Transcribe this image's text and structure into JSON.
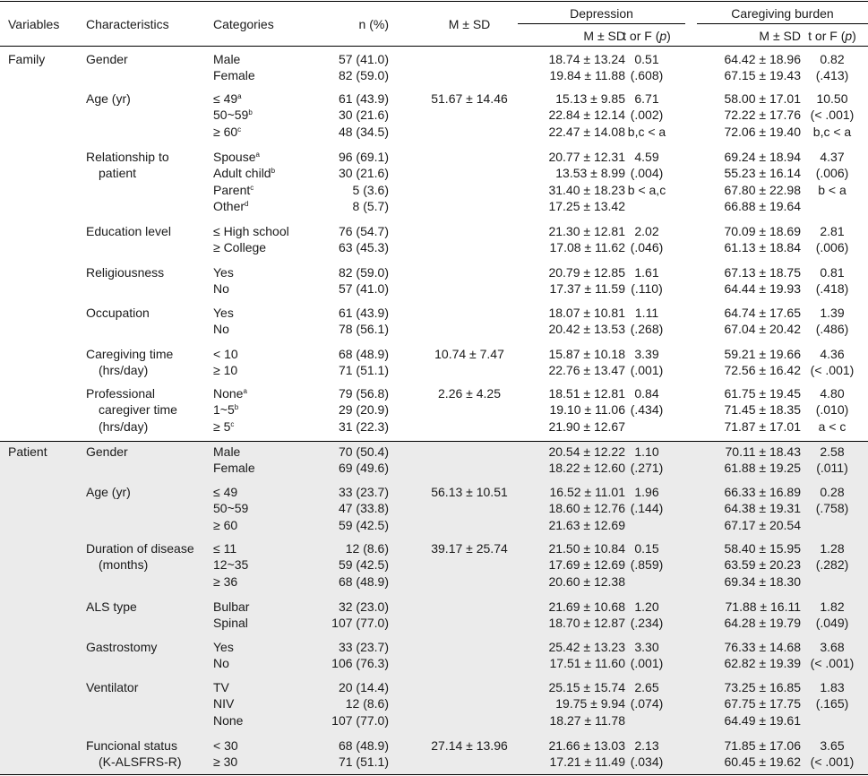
{
  "header": {
    "variables": "Variables",
    "characteristics": "Characteristics",
    "categories": "Categories",
    "n": "n (%)",
    "msd": "M ± SD",
    "depression": "Depression",
    "burden": "Caregiving burden",
    "sub_msd": "M ± SD",
    "sub_t": "t or F (",
    "sub_p": "p",
    "sub_close": ")"
  },
  "groups": [
    "Family",
    "Patient"
  ],
  "rows": [
    {
      "char": [
        "Gender"
      ],
      "cats": [
        {
          "t": "Male"
        },
        {
          "t": "Female"
        }
      ],
      "n": [
        "57 (41.0)",
        "82 (59.0)"
      ],
      "msd": [],
      "dm": [
        "18.74 ± 13.24",
        "19.84 ± 11.88"
      ],
      "dt": [
        "0.51",
        "(.608)"
      ],
      "bm": [
        "64.42 ± 18.96",
        "67.15 ± 19.43"
      ],
      "bt": [
        "0.82",
        "(.413)"
      ]
    },
    {
      "char": [
        "Age (yr)"
      ],
      "cats": [
        {
          "t": "≤ 49",
          "s": "a"
        },
        {
          "t": "50~59",
          "s": "b"
        },
        {
          "t": "≥ 60",
          "s": "c"
        }
      ],
      "n": [
        "61 (43.9)",
        "30 (21.6)",
        "48 (34.5)"
      ],
      "msd": [
        "51.67 ± 14.46"
      ],
      "dm": [
        "15.13 ± 9.85",
        "22.84 ± 12.14",
        "22.47 ± 14.08"
      ],
      "dt": [
        "6.71",
        "(.002)",
        "b,c < a"
      ],
      "bm": [
        "58.00 ± 17.01",
        "72.22 ± 17.76",
        "72.06 ± 19.40"
      ],
      "bt": [
        "10.50",
        "(< .001)",
        "b,c < a"
      ]
    },
    {
      "char": [
        "Relationship to",
        "patient"
      ],
      "cats": [
        {
          "t": "Spouse",
          "s": "a"
        },
        {
          "t": "Adult child",
          "s": "b"
        },
        {
          "t": "Parent",
          "s": "c"
        },
        {
          "t": "Other",
          "s": "d"
        }
      ],
      "n": [
        "96 (69.1)",
        "30 (21.6)",
        "5 (3.6)",
        "8 (5.7)"
      ],
      "msd": [],
      "dm": [
        "20.77 ± 12.31",
        "13.53 ± 8.99",
        "31.40 ± 18.23",
        "17.25 ± 13.42"
      ],
      "dt": [
        "4.59",
        "(.004)",
        "b < a,c"
      ],
      "bm": [
        "69.24 ± 18.94",
        "55.23 ± 16.14",
        "67.80 ± 22.98",
        "66.88 ± 19.64"
      ],
      "bt": [
        "4.37",
        "(.006)",
        "b < a"
      ]
    },
    {
      "char": [
        "Education level"
      ],
      "cats": [
        {
          "t": "≤ High school"
        },
        {
          "t": "≥ College"
        }
      ],
      "n": [
        "76 (54.7)",
        "63 (45.3)"
      ],
      "msd": [],
      "dm": [
        "21.30 ± 12.81",
        "17.08 ± 11.62"
      ],
      "dt": [
        "2.02",
        "(.046)"
      ],
      "bm": [
        "70.09 ± 18.69",
        "61.13 ± 18.84"
      ],
      "bt": [
        "2.81",
        "(.006)"
      ]
    },
    {
      "char": [
        "Religiousness"
      ],
      "cats": [
        {
          "t": "Yes"
        },
        {
          "t": "No"
        }
      ],
      "n": [
        "82 (59.0)",
        "57 (41.0)"
      ],
      "msd": [],
      "dm": [
        "20.79 ± 12.85",
        "17.37 ± 11.59"
      ],
      "dt": [
        "1.61",
        "(.110)"
      ],
      "bm": [
        "67.13 ± 18.75",
        "64.44 ± 19.93"
      ],
      "bt": [
        "0.81",
        "(.418)"
      ]
    },
    {
      "char": [
        "Occupation"
      ],
      "cats": [
        {
          "t": "Yes"
        },
        {
          "t": "No"
        }
      ],
      "n": [
        "61 (43.9)",
        "78 (56.1)"
      ],
      "msd": [],
      "dm": [
        "18.07 ± 10.81",
        "20.42 ± 13.53"
      ],
      "dt": [
        "1.11",
        "(.268)"
      ],
      "bm": [
        "64.74 ± 17.65",
        "67.04 ± 20.42"
      ],
      "bt": [
        "1.39",
        "(.486)"
      ]
    },
    {
      "char": [
        "Caregiving time",
        "(hrs/day)"
      ],
      "cats": [
        {
          "t": "< 10"
        },
        {
          "t": "≥ 10"
        }
      ],
      "n": [
        "68 (48.9)",
        "71 (51.1)"
      ],
      "msd": [
        "10.74 ± 7.47"
      ],
      "dm": [
        "15.87 ± 10.18",
        "22.76 ± 13.47"
      ],
      "dt": [
        "3.39",
        "(.001)"
      ],
      "bm": [
        "59.21 ± 19.66",
        "72.56 ± 16.42"
      ],
      "bt": [
        "4.36",
        "(< .001)"
      ]
    },
    {
      "char": [
        "Professional",
        "caregiver time",
        "(hrs/day)"
      ],
      "cats": [
        {
          "t": "None",
          "s": "a"
        },
        {
          "t": "1~5",
          "s": "b"
        },
        {
          "t": "≥ 5",
          "s": "c"
        }
      ],
      "n": [
        "79 (56.8)",
        "29 (20.9)",
        "31 (22.3)"
      ],
      "msd": [
        "2.26 ± 4.25"
      ],
      "dm": [
        "18.51 ± 12.81",
        "19.10 ± 11.06",
        "21.90 ± 12.67"
      ],
      "dt": [
        "0.84",
        "(.434)"
      ],
      "bm": [
        "61.75 ± 19.45",
        "71.45 ± 18.35",
        "71.87 ± 17.01"
      ],
      "bt": [
        "4.80",
        "(.010)",
        "a < c"
      ]
    },
    {
      "char": [
        "Gender"
      ],
      "cats": [
        {
          "t": "Male"
        },
        {
          "t": "Female"
        }
      ],
      "n": [
        "70 (50.4)",
        "69 (49.6)"
      ],
      "msd": [],
      "dm": [
        "20.54 ± 12.22",
        "18.22 ± 12.60"
      ],
      "dt": [
        "1.10",
        "(.271)"
      ],
      "bm": [
        "70.11 ± 18.43",
        "61.88 ± 19.25"
      ],
      "bt": [
        "2.58",
        "(.011)"
      ]
    },
    {
      "char": [
        "Age (yr)"
      ],
      "cats": [
        {
          "t": "≤ 49"
        },
        {
          "t": "50~59"
        },
        {
          "t": "≥ 60"
        }
      ],
      "n": [
        "33 (23.7)",
        "47 (33.8)",
        "59 (42.5)"
      ],
      "msd": [
        "56.13 ± 10.51"
      ],
      "dm": [
        "16.52 ± 11.01",
        "18.60 ± 12.76",
        "21.63 ± 12.69"
      ],
      "dt": [
        "1.96",
        "(.144)"
      ],
      "bm": [
        "66.33 ± 16.89",
        "64.38 ± 19.31",
        "67.17 ± 20.54"
      ],
      "bt": [
        "0.28",
        "(.758)"
      ]
    },
    {
      "char": [
        "Duration of disease",
        "(months)"
      ],
      "cats": [
        {
          "t": "≤ 11"
        },
        {
          "t": "12~35"
        },
        {
          "t": "≥ 36"
        }
      ],
      "n": [
        "12 (8.6)",
        "59 (42.5)",
        "68 (48.9)"
      ],
      "msd": [
        "39.17 ± 25.74"
      ],
      "dm": [
        "21.50 ± 10.84",
        "17.69 ± 12.69",
        "20.60 ± 12.38"
      ],
      "dt": [
        "0.15",
        "(.859)"
      ],
      "bm": [
        "58.40 ± 15.95",
        "63.59 ± 20.23",
        "69.34 ± 18.30"
      ],
      "bt": [
        "1.28",
        "(.282)"
      ]
    },
    {
      "char": [
        "ALS type"
      ],
      "cats": [
        {
          "t": "Bulbar"
        },
        {
          "t": "Spinal"
        }
      ],
      "n": [
        "32 (23.0)",
        "107 (77.0)"
      ],
      "msd": [],
      "dm": [
        "21.69 ± 10.68",
        "18.70 ± 12.87"
      ],
      "dt": [
        "1.20",
        "(.234)"
      ],
      "bm": [
        "71.88 ± 16.11",
        "64.28 ± 19.79"
      ],
      "bt": [
        "1.82",
        "(.049)"
      ]
    },
    {
      "char": [
        "Gastrostomy"
      ],
      "cats": [
        {
          "t": "Yes"
        },
        {
          "t": "No"
        }
      ],
      "n": [
        "33 (23.7)",
        "106 (76.3)"
      ],
      "msd": [],
      "dm": [
        "25.42 ± 13.23",
        "17.51 ± 11.60"
      ],
      "dt": [
        "3.30",
        "(.001)"
      ],
      "bm": [
        "76.33 ± 14.68",
        "62.82 ± 19.39"
      ],
      "bt": [
        "3.68",
        "(< .001)"
      ]
    },
    {
      "char": [
        "Ventilator"
      ],
      "cats": [
        {
          "t": "TV"
        },
        {
          "t": "NIV"
        },
        {
          "t": "None"
        }
      ],
      "n": [
        "20 (14.4)",
        "12 (8.6)",
        "107 (77.0)"
      ],
      "msd": [],
      "dm": [
        "25.15 ± 15.74",
        "19.75 ± 9.94",
        "18.27 ± 11.78"
      ],
      "dt": [
        "2.65",
        "(.074)"
      ],
      "bm": [
        "73.25 ± 16.85",
        "67.75 ± 17.75",
        "64.49 ± 19.61"
      ],
      "bt": [
        "1.83",
        "(.165)"
      ]
    },
    {
      "char": [
        "Funcional status",
        "(K-ALSFRS-R)"
      ],
      "cats": [
        {
          "t": "< 30"
        },
        {
          "t": "≥ 30"
        }
      ],
      "n": [
        "68 (48.9)",
        "71 (51.1)"
      ],
      "msd": [
        "27.14 ± 13.96"
      ],
      "dm": [
        "21.66 ± 13.03",
        "17.21 ± 11.49"
      ],
      "dt": [
        "2.13",
        "(.034)"
      ],
      "bm": [
        "71.85 ± 17.06",
        "60.45 ± 19.62"
      ],
      "bt": [
        "3.65",
        "(< .001)"
      ]
    }
  ]
}
